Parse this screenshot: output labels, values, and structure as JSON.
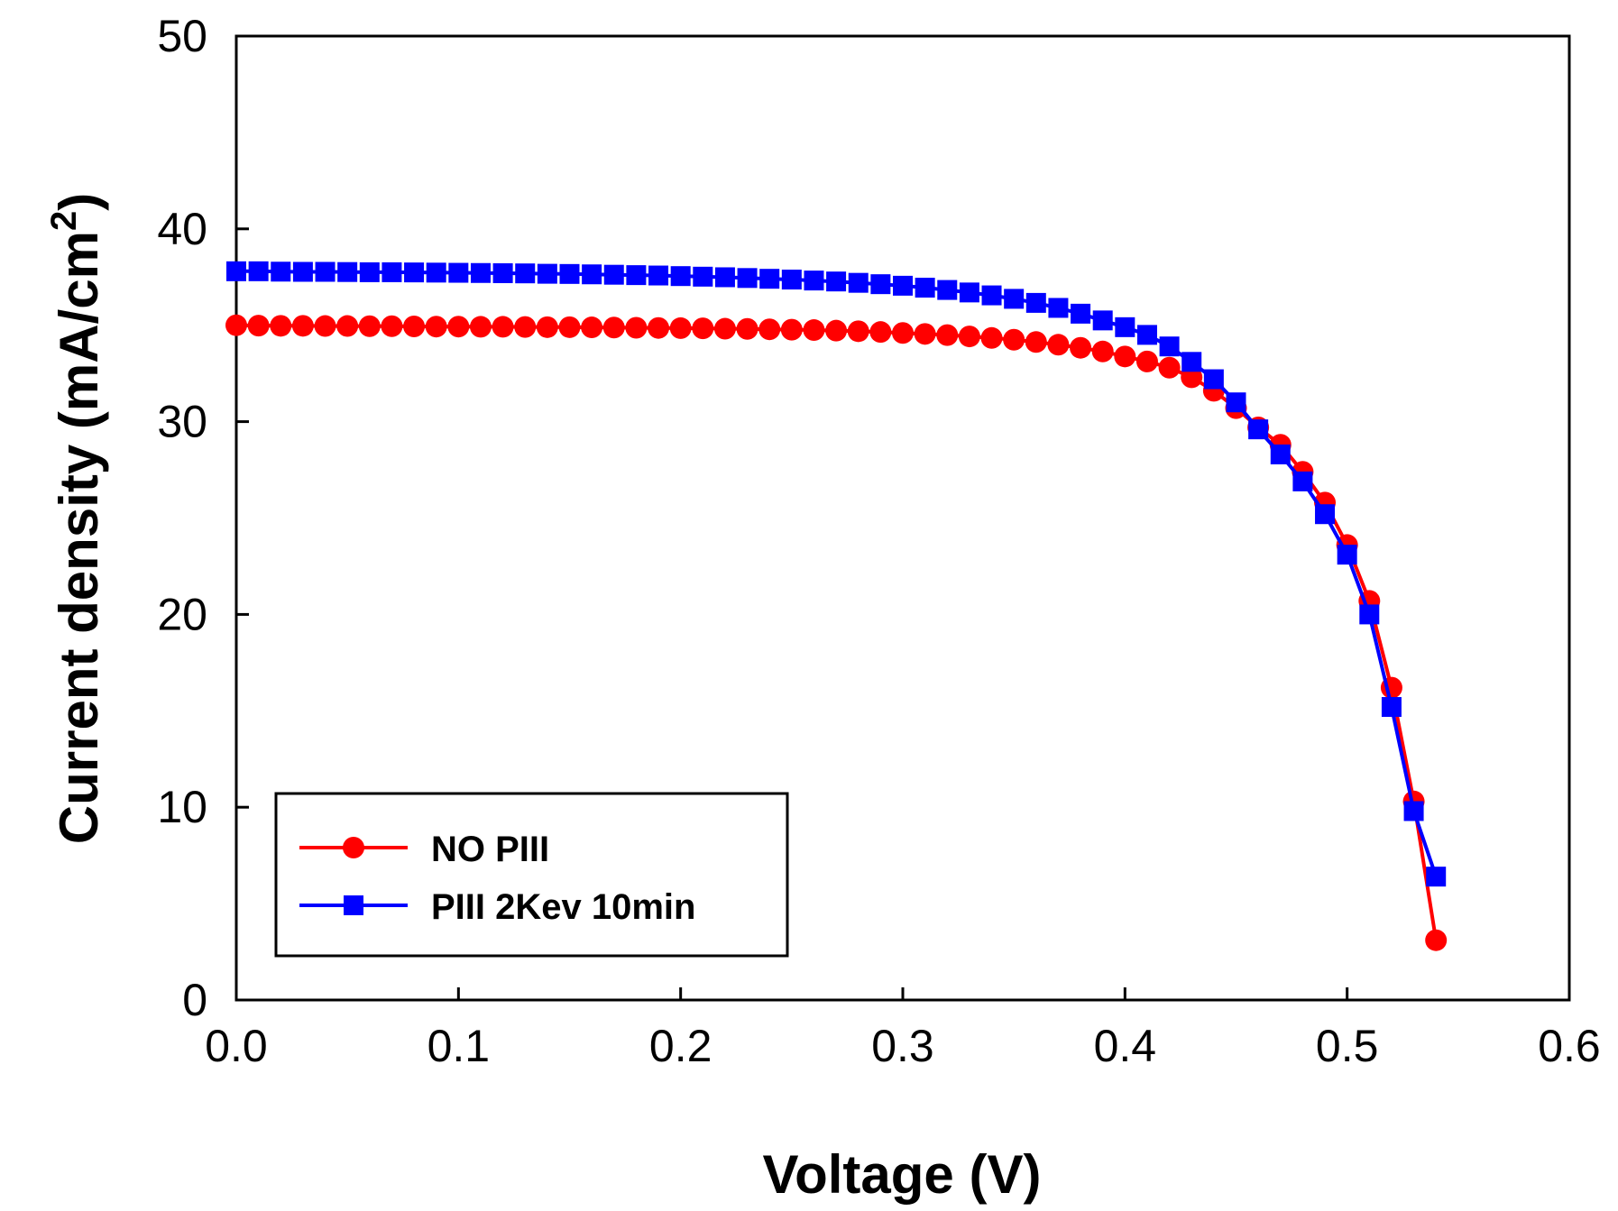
{
  "chart_data": {
    "type": "line",
    "title": "",
    "xlabel": "Voltage (V)",
    "ylabel": "Current density (mA/cm",
    "ylabel_superscript": "2",
    "ylabel_close": ")",
    "xlim": [
      0.0,
      0.6
    ],
    "ylim": [
      0,
      50
    ],
    "xticks": [
      0.0,
      0.1,
      0.2,
      0.3,
      0.4,
      0.5,
      0.6
    ],
    "xtick_labels": [
      "0.0",
      "0.1",
      "0.2",
      "0.3",
      "0.4",
      "0.5",
      "0.6"
    ],
    "yticks": [
      0,
      10,
      20,
      30,
      40,
      50
    ],
    "ytick_labels": [
      "0",
      "10",
      "20",
      "30",
      "40",
      "50"
    ],
    "grid": false,
    "legend_position": "bottom-left",
    "series": [
      {
        "name": "NO PIII",
        "color": "#ff0000",
        "marker": "circle",
        "x": [
          0.0,
          0.01,
          0.02,
          0.03,
          0.04,
          0.05,
          0.06,
          0.07,
          0.08,
          0.09,
          0.1,
          0.11,
          0.12,
          0.13,
          0.14,
          0.15,
          0.16,
          0.17,
          0.18,
          0.19,
          0.2,
          0.21,
          0.22,
          0.23,
          0.24,
          0.25,
          0.26,
          0.27,
          0.28,
          0.29,
          0.3,
          0.31,
          0.32,
          0.33,
          0.34,
          0.35,
          0.36,
          0.37,
          0.38,
          0.39,
          0.4,
          0.41,
          0.42,
          0.43,
          0.44,
          0.45,
          0.46,
          0.47,
          0.48,
          0.49,
          0.5,
          0.51,
          0.52,
          0.53,
          0.54
        ],
        "y": [
          35.0,
          34.98,
          34.97,
          34.97,
          34.96,
          34.96,
          34.95,
          34.95,
          34.94,
          34.93,
          34.93,
          34.92,
          34.92,
          34.91,
          34.9,
          34.9,
          34.89,
          34.88,
          34.87,
          34.86,
          34.85,
          34.84,
          34.82,
          34.81,
          34.79,
          34.77,
          34.75,
          34.72,
          34.69,
          34.65,
          34.6,
          34.55,
          34.49,
          34.42,
          34.34,
          34.25,
          34.13,
          33.99,
          33.83,
          33.64,
          33.38,
          33.12,
          32.8,
          32.3,
          31.6,
          30.7,
          29.7,
          28.8,
          27.4,
          25.8,
          23.6,
          20.7,
          16.2,
          10.3,
          3.1
        ]
      },
      {
        "name": "PIII 2Kev 10min",
        "color": "#0000ff",
        "marker": "square",
        "x": [
          0.0,
          0.01,
          0.02,
          0.03,
          0.04,
          0.05,
          0.06,
          0.07,
          0.08,
          0.09,
          0.1,
          0.11,
          0.12,
          0.13,
          0.14,
          0.15,
          0.16,
          0.17,
          0.18,
          0.19,
          0.2,
          0.21,
          0.22,
          0.23,
          0.24,
          0.25,
          0.26,
          0.27,
          0.28,
          0.29,
          0.3,
          0.31,
          0.32,
          0.33,
          0.34,
          0.35,
          0.36,
          0.37,
          0.38,
          0.39,
          0.4,
          0.41,
          0.42,
          0.43,
          0.44,
          0.45,
          0.46,
          0.47,
          0.48,
          0.49,
          0.5,
          0.51,
          0.52,
          0.53,
          0.54
        ],
        "y": [
          37.8,
          37.8,
          37.78,
          37.77,
          37.77,
          37.76,
          37.75,
          37.75,
          37.74,
          37.73,
          37.72,
          37.71,
          37.7,
          37.69,
          37.67,
          37.66,
          37.64,
          37.62,
          37.6,
          37.58,
          37.55,
          37.52,
          37.49,
          37.45,
          37.41,
          37.37,
          37.32,
          37.27,
          37.2,
          37.13,
          37.05,
          36.95,
          36.83,
          36.7,
          36.55,
          36.37,
          36.16,
          35.9,
          35.6,
          35.25,
          34.9,
          34.5,
          33.9,
          33.1,
          32.2,
          31.0,
          29.6,
          28.3,
          26.9,
          25.2,
          23.1,
          20.0,
          15.2,
          9.8,
          6.4
        ]
      }
    ]
  }
}
